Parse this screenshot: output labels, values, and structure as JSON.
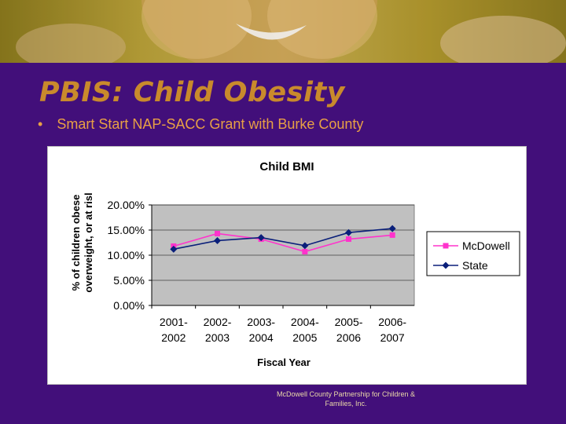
{
  "slide": {
    "title": "PBIS: Child Obesity",
    "bullet_marker": "•",
    "bullet": "Smart Start NAP-SACC Grant with Burke County",
    "footer_line1": "McDowell County Partnership for Children &",
    "footer_line2": "Families, Inc."
  },
  "colors": {
    "background": "#420f7a",
    "title": "#c98a2c",
    "bullet": "#e8a045",
    "plot_area": "#c0c0c0",
    "mcdowell": "#ff33cc",
    "state": "#0a1f7a"
  },
  "chart_data": {
    "type": "line",
    "title": "Child BMI",
    "xlabel": "Fiscal Year",
    "ylabel_line1": "% of children obese",
    "ylabel_line2": "overweight, or at risl",
    "categories": [
      [
        "2001-",
        "2002"
      ],
      [
        "2002-",
        "2003"
      ],
      [
        "2003-",
        "2004"
      ],
      [
        "2004-",
        "2005"
      ],
      [
        "2005-",
        "2006"
      ],
      [
        "2006-",
        "2007"
      ]
    ],
    "y_ticks": [
      "0.00%",
      "5.00%",
      "10.00%",
      "15.00%",
      "20.00%"
    ],
    "ylim": [
      0,
      20
    ],
    "grid": true,
    "legend_position": "right",
    "series": [
      {
        "name": "McDowell",
        "marker": "square",
        "color": "#ff33cc",
        "values": [
          11.8,
          14.3,
          13.2,
          10.7,
          13.2,
          14.0
        ]
      },
      {
        "name": "State",
        "marker": "diamond",
        "color": "#0a1f7a",
        "values": [
          11.2,
          12.9,
          13.5,
          11.9,
          14.5,
          15.3
        ]
      }
    ]
  }
}
